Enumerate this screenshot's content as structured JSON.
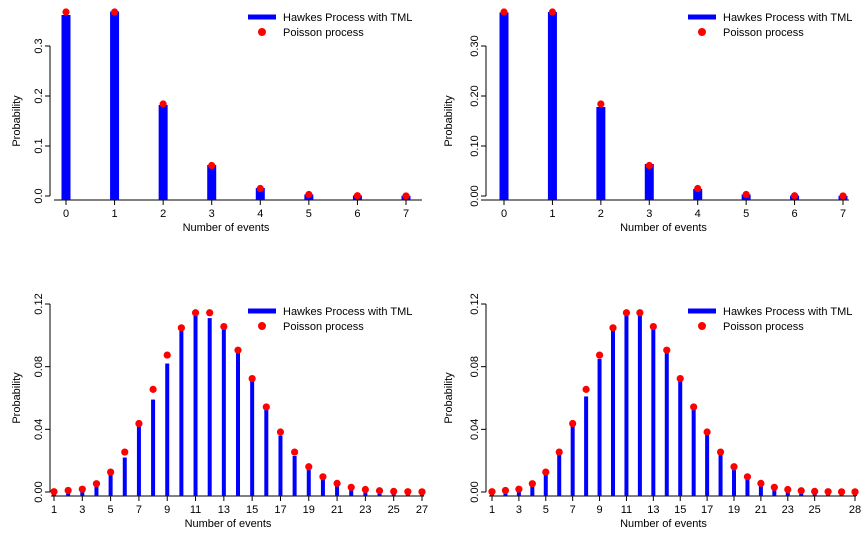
{
  "colors": {
    "hawkes": "#0000ff",
    "poisson": "#ff0000",
    "axis": "#000000"
  },
  "chart_data": [
    {
      "type": "bar",
      "xlabel": "Number of events",
      "ylabel": "Probability",
      "ylim": [
        0,
        0.38
      ],
      "yticks": [
        "0.0",
        "0.1",
        "0.2",
        "0.3"
      ],
      "xtick_labels": [
        "0",
        "1",
        "2",
        "3",
        "4",
        "5",
        "6",
        "7"
      ],
      "legend_position": "top-right",
      "legend": [
        "Hawkes Process with TML",
        "Poisson process"
      ],
      "categories": [
        0,
        1,
        2,
        3,
        4,
        5,
        6,
        7
      ],
      "series": [
        {
          "name": "Hawkes Process with TML",
          "style": "bar",
          "values": [
            0.362,
            0.369,
            0.182,
            0.062,
            0.016,
            0.003,
            0.001,
            0.0005
          ]
        },
        {
          "name": "Poisson process",
          "style": "point",
          "values": [
            0.368,
            0.368,
            0.184,
            0.061,
            0.015,
            0.003,
            0.0005,
            0.0001
          ]
        }
      ]
    },
    {
      "type": "bar",
      "xlabel": "Number of events",
      "ylabel": "Probability",
      "ylim": [
        0,
        0.38
      ],
      "yticks": [
        "0.00",
        "0.10",
        "0.20",
        "0.30"
      ],
      "xtick_labels": [
        "0",
        "1",
        "2",
        "3",
        "4",
        "5",
        "6",
        "7"
      ],
      "legend_position": "top-right",
      "legend": [
        "Hawkes Process with TML",
        "Poisson process"
      ],
      "categories": [
        0,
        1,
        2,
        3,
        4,
        5,
        6,
        7
      ],
      "series": [
        {
          "name": "Hawkes Process with TML",
          "style": "bar",
          "values": [
            0.367,
            0.368,
            0.178,
            0.064,
            0.014,
            0.003,
            0.0008,
            0.0003
          ]
        },
        {
          "name": "Poisson process",
          "style": "point",
          "values": [
            0.368,
            0.368,
            0.184,
            0.061,
            0.015,
            0.003,
            0.0005,
            0.0001
          ]
        }
      ]
    },
    {
      "type": "bar",
      "xlabel": "Number of events",
      "ylabel": "Probability",
      "ylim": [
        0,
        0.12
      ],
      "yticks": [
        "0.00",
        "0.04",
        "0.08",
        "0.12"
      ],
      "xtick_labels": [
        "1",
        "3",
        "5",
        "7",
        "9",
        "11",
        "13",
        "15",
        "17",
        "19",
        "21",
        "23",
        "25",
        "27"
      ],
      "legend_position": "top-right",
      "legend": [
        "Hawkes Process with TML",
        "Poisson process"
      ],
      "categories": [
        1,
        2,
        3,
        4,
        5,
        6,
        7,
        8,
        9,
        10,
        11,
        12,
        13,
        14,
        15,
        16,
        17,
        18,
        19,
        20,
        21,
        22,
        23,
        24,
        25,
        26,
        27
      ],
      "series": [
        {
          "name": "Hawkes Process with TML",
          "style": "bar",
          "values": [
            0.0002,
            0.0008,
            0.0015,
            0.004,
            0.011,
            0.022,
            0.042,
            0.059,
            0.082,
            0.103,
            0.113,
            0.111,
            0.104,
            0.089,
            0.071,
            0.053,
            0.036,
            0.023,
            0.014,
            0.008,
            0.004,
            0.002,
            0.001,
            0.0006,
            0.0003,
            0.0002,
            0.0001
          ]
        },
        {
          "name": "Poisson process",
          "style": "point",
          "values": [
            0.0002,
            0.001,
            0.0018,
            0.0053,
            0.0127,
            0.0255,
            0.0437,
            0.0655,
            0.0874,
            0.1048,
            0.1144,
            0.1144,
            0.1056,
            0.0905,
            0.0724,
            0.0543,
            0.0383,
            0.0255,
            0.0161,
            0.0097,
            0.0055,
            0.003,
            0.0016,
            0.0008,
            0.0004,
            0.0002,
            0.0001
          ]
        }
      ]
    },
    {
      "type": "bar",
      "xlabel": "Number of events",
      "ylabel": "Probability",
      "ylim": [
        0,
        0.12
      ],
      "yticks": [
        "0.00",
        "0.04",
        "0.08",
        "0.12"
      ],
      "xtick_labels": [
        "1",
        "3",
        "5",
        "7",
        "9",
        "11",
        "13",
        "15",
        "17",
        "19",
        "21",
        "23",
        "25",
        "28"
      ],
      "legend_position": "top-right",
      "legend": [
        "Hawkes Process with TML",
        "Poisson process"
      ],
      "categories": [
        1,
        2,
        3,
        4,
        5,
        6,
        7,
        8,
        9,
        10,
        11,
        12,
        13,
        14,
        15,
        16,
        17,
        18,
        19,
        20,
        21,
        22,
        23,
        24,
        25,
        26,
        27,
        28
      ],
      "series": [
        {
          "name": "Hawkes Process with TML",
          "style": "bar",
          "values": [
            0.0002,
            0.0008,
            0.0015,
            0.004,
            0.011,
            0.024,
            0.042,
            0.061,
            0.085,
            0.104,
            0.113,
            0.113,
            0.104,
            0.09,
            0.071,
            0.053,
            0.037,
            0.024,
            0.014,
            0.008,
            0.004,
            0.002,
            0.001,
            0.0006,
            0.0003,
            0.0002,
            0.0001,
            0.0001
          ]
        },
        {
          "name": "Poisson process",
          "style": "point",
          "values": [
            0.0002,
            0.001,
            0.0018,
            0.0053,
            0.0127,
            0.0255,
            0.0437,
            0.0655,
            0.0874,
            0.1048,
            0.1144,
            0.1144,
            0.1056,
            0.0905,
            0.0724,
            0.0543,
            0.0383,
            0.0255,
            0.0161,
            0.0097,
            0.0055,
            0.003,
            0.0016,
            0.0008,
            0.0004,
            0.0002,
            0.0001,
            0.0001
          ]
        }
      ]
    }
  ]
}
